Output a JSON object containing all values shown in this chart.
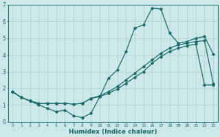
{
  "xlabel": "Humidex (Indice chaleur)",
  "x_values": [
    0,
    1,
    2,
    3,
    4,
    5,
    6,
    7,
    8,
    9,
    10,
    11,
    12,
    13,
    14,
    15,
    16,
    17,
    18,
    19,
    20,
    21,
    22,
    23
  ],
  "line_main": [
    1.8,
    1.45,
    1.25,
    1.0,
    0.8,
    0.6,
    0.7,
    0.35,
    0.25,
    0.5,
    1.5,
    2.6,
    3.1,
    4.2,
    5.6,
    5.8,
    6.8,
    6.75,
    5.3,
    4.7,
    4.8,
    5.0,
    5.1,
    4.05
  ],
  "line_upper": [
    1.8,
    1.45,
    1.25,
    1.1,
    1.1,
    1.1,
    1.1,
    1.05,
    1.1,
    1.4,
    1.55,
    1.8,
    2.1,
    2.5,
    2.9,
    3.3,
    3.7,
    4.1,
    4.4,
    4.6,
    4.7,
    4.8,
    4.85,
    2.3
  ],
  "line_lower": [
    1.8,
    1.45,
    1.25,
    1.1,
    1.1,
    1.1,
    1.1,
    1.05,
    1.1,
    1.4,
    1.5,
    1.7,
    1.95,
    2.3,
    2.65,
    3.0,
    3.5,
    3.9,
    4.2,
    4.4,
    4.55,
    4.65,
    2.2,
    2.2
  ],
  "line_color": "#1a6b6b",
  "bg_color": "#cce8e8",
  "grid_color": "#aacfcf",
  "ylim": [
    0,
    7
  ],
  "xlim": [
    -0.5,
    23.5
  ],
  "yticks": [
    0,
    1,
    2,
    3,
    4,
    5,
    6,
    7
  ]
}
